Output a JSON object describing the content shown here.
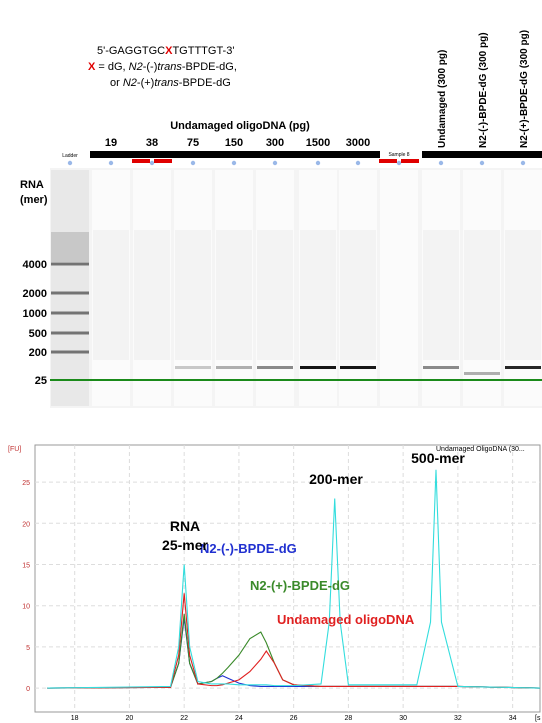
{
  "sequence": {
    "line1": [
      "5'-GAGGTGC",
      "X",
      "TGTTTGT-3'"
    ],
    "line2": [
      "X",
      " = dG, ",
      "N2",
      "-(-)",
      "trans",
      "-BPDE-dG,"
    ],
    "line3": [
      "or ",
      "N2",
      "-(+)",
      "trans",
      "-BPDE-dG"
    ]
  },
  "gel": {
    "group_label": "Undamaged oligoDNA (pg)",
    "lanes": [
      "Ladder",
      "19",
      "38",
      "75",
      "150",
      "300",
      "1500",
      "3000",
      "Sample 8",
      "Undamaged (300 pg)",
      "N2-(-)-BPDE-dG (300 pg)",
      "N2-(+)-BPDE-dG (300 pg)"
    ],
    "axis_label": [
      "RNA",
      "(mer)"
    ],
    "ladder_labels": [
      "4000",
      "2000",
      "1000",
      "500",
      "200",
      "25"
    ]
  },
  "chart_data": {
    "type": "line",
    "y_label": "[FU]",
    "x_label": "[s",
    "x": [
      17,
      21.5,
      21.8,
      22,
      22.2,
      22.5,
      23,
      23.2,
      23.4,
      23.6,
      24,
      24.4,
      24.8,
      25,
      25.3,
      25.6,
      26,
      27,
      27.3,
      27.5,
      27.7,
      28,
      30.5,
      31,
      31.2,
      31.4,
      32,
      35
    ],
    "series": [
      {
        "name": "Undamaged OligoDNA (30...",
        "color": "#33dddd",
        "values": [
          0,
          0.2,
          5,
          15,
          5,
          0.8,
          0.5,
          0.5,
          0.5,
          0.5,
          0.4,
          0.4,
          0.4,
          0.4,
          0.3,
          0.3,
          0.3,
          0.5,
          8,
          23,
          8,
          0.4,
          0.4,
          8,
          26.5,
          8,
          0.2,
          0
        ]
      },
      {
        "name": "Undamaged oligoDNA",
        "color": "#e02020",
        "values": [
          0,
          0.1,
          4,
          11.5,
          4,
          0.5,
          0.3,
          0.3,
          0.4,
          0.6,
          1,
          2,
          3.5,
          4.5,
          3,
          1,
          0.4,
          0.2,
          0.2,
          0.2,
          0.2,
          0.2,
          0.2,
          0.2,
          0.2,
          0.2,
          0.2,
          0
        ]
      },
      {
        "name": "N2-(+)-BPDE-dG",
        "color": "#3a8a2a",
        "values": [
          0,
          0.1,
          3,
          9,
          3,
          0.5,
          0.8,
          1.2,
          1.8,
          2.5,
          4,
          6,
          6.8,
          5.5,
          3,
          1,
          0.4,
          0.2,
          0.2,
          0.2,
          0.2,
          0.2,
          0.2,
          0.2,
          0.2,
          0.2,
          0.2,
          0
        ]
      },
      {
        "name": "N2-(-)-BPDE-dG",
        "color": "#2030d0",
        "values": [
          0,
          0.1,
          3,
          8.5,
          3,
          0.5,
          0.8,
          1.2,
          1.5,
          1.2,
          0.6,
          0.3,
          0.2,
          0.2,
          0.2,
          0.2,
          0.2,
          0.2,
          0.2,
          0.2,
          0.2,
          0.2,
          0.2,
          0.2,
          0.2,
          0.2,
          0.2,
          0
        ]
      }
    ],
    "annotations": [
      "RNA",
      "25-mer",
      "200-mer",
      "500-mer"
    ],
    "xlim": [
      16.55,
      35
    ],
    "ylim": [
      -2.9,
      29.5
    ],
    "xticks": [
      18,
      20,
      22,
      24,
      26,
      28,
      30,
      32,
      34
    ],
    "yticks": [
      0,
      5,
      10,
      15,
      20,
      25
    ],
    "grid": true
  }
}
